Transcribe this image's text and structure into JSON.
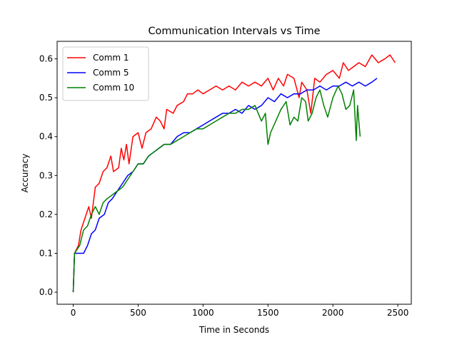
{
  "chart_data": {
    "type": "line",
    "title": "Communication Intervals vs Time",
    "x_label": "Time in Seconds",
    "y_label": "Accuracy",
    "xlim": [
      -124,
      2604
    ],
    "ylim": [
      -0.031,
      0.645
    ],
    "xticks": [
      0,
      500,
      1000,
      1500,
      2000,
      2500
    ],
    "yticks": [
      {
        "value": 0,
        "label": "0.0"
      },
      0.1,
      0.2,
      0.3,
      0.4,
      0.5,
      0.6
    ],
    "grid": false,
    "legend": "upper-left",
    "series": [
      {
        "name": "Comm 1",
        "color": "#ff0000",
        "x": [
          0,
          10,
          40,
          60,
          90,
          120,
          140,
          170,
          200,
          230,
          260,
          290,
          310,
          350,
          370,
          390,
          410,
          430,
          460,
          500,
          530,
          560,
          600,
          640,
          670,
          700,
          720,
          770,
          800,
          850,
          880,
          920,
          960,
          1000,
          1050,
          1100,
          1150,
          1200,
          1250,
          1300,
          1350,
          1400,
          1450,
          1500,
          1540,
          1580,
          1620,
          1650,
          1700,
          1740,
          1760,
          1800,
          1830,
          1860,
          1900,
          1950,
          2000,
          2050,
          2080,
          2120,
          2160,
          2200,
          2250,
          2300,
          2350,
          2400,
          2440,
          2480
        ],
        "values": [
          0.0,
          0.1,
          0.12,
          0.16,
          0.19,
          0.22,
          0.19,
          0.27,
          0.28,
          0.31,
          0.32,
          0.35,
          0.31,
          0.32,
          0.37,
          0.34,
          0.38,
          0.33,
          0.4,
          0.41,
          0.37,
          0.41,
          0.42,
          0.45,
          0.44,
          0.42,
          0.47,
          0.46,
          0.48,
          0.49,
          0.51,
          0.51,
          0.52,
          0.51,
          0.52,
          0.53,
          0.52,
          0.53,
          0.52,
          0.54,
          0.53,
          0.54,
          0.53,
          0.55,
          0.52,
          0.55,
          0.53,
          0.56,
          0.55,
          0.5,
          0.54,
          0.52,
          0.46,
          0.55,
          0.54,
          0.56,
          0.57,
          0.55,
          0.59,
          0.57,
          0.58,
          0.59,
          0.58,
          0.61,
          0.59,
          0.6,
          0.61,
          0.59
        ]
      },
      {
        "name": "Comm 5",
        "color": "#0000ff",
        "x": [
          0,
          10,
          40,
          80,
          110,
          140,
          170,
          200,
          240,
          270,
          300,
          340,
          380,
          420,
          460,
          500,
          540,
          580,
          620,
          660,
          700,
          750,
          800,
          850,
          900,
          950,
          1000,
          1050,
          1100,
          1150,
          1200,
          1250,
          1300,
          1350,
          1400,
          1450,
          1500,
          1550,
          1600,
          1650,
          1700,
          1750,
          1800,
          1850,
          1900,
          1950,
          2000,
          2050,
          2100,
          2150,
          2200,
          2250,
          2300,
          2340
        ],
        "values": [
          0.0,
          0.1,
          0.1,
          0.1,
          0.12,
          0.15,
          0.16,
          0.19,
          0.2,
          0.23,
          0.24,
          0.26,
          0.28,
          0.3,
          0.31,
          0.33,
          0.33,
          0.35,
          0.36,
          0.37,
          0.38,
          0.38,
          0.4,
          0.41,
          0.41,
          0.42,
          0.43,
          0.44,
          0.45,
          0.46,
          0.46,
          0.47,
          0.46,
          0.48,
          0.47,
          0.48,
          0.5,
          0.49,
          0.51,
          0.5,
          0.51,
          0.51,
          0.52,
          0.52,
          0.53,
          0.52,
          0.53,
          0.53,
          0.54,
          0.53,
          0.54,
          0.53,
          0.54,
          0.55
        ]
      },
      {
        "name": "Comm 10",
        "color": "#008000",
        "x": [
          0,
          10,
          50,
          80,
          110,
          140,
          170,
          200,
          230,
          260,
          300,
          340,
          380,
          420,
          460,
          500,
          540,
          580,
          620,
          660,
          700,
          750,
          800,
          850,
          900,
          950,
          1000,
          1050,
          1100,
          1150,
          1200,
          1250,
          1300,
          1350,
          1400,
          1450,
          1480,
          1500,
          1520,
          1560,
          1600,
          1640,
          1670,
          1700,
          1730,
          1760,
          1790,
          1810,
          1840,
          1870,
          1900,
          1930,
          1960,
          2000,
          2040,
          2070,
          2100,
          2130,
          2160,
          2180,
          2190,
          2210
        ],
        "values": [
          0.0,
          0.1,
          0.12,
          0.16,
          0.17,
          0.2,
          0.22,
          0.2,
          0.23,
          0.24,
          0.25,
          0.26,
          0.27,
          0.29,
          0.31,
          0.33,
          0.33,
          0.35,
          0.36,
          0.37,
          0.38,
          0.38,
          0.39,
          0.4,
          0.41,
          0.42,
          0.42,
          0.43,
          0.44,
          0.45,
          0.46,
          0.46,
          0.47,
          0.47,
          0.48,
          0.44,
          0.46,
          0.38,
          0.41,
          0.44,
          0.47,
          0.49,
          0.43,
          0.45,
          0.44,
          0.5,
          0.49,
          0.44,
          0.46,
          0.5,
          0.52,
          0.48,
          0.45,
          0.5,
          0.53,
          0.51,
          0.47,
          0.48,
          0.52,
          0.39,
          0.48,
          0.4
        ]
      }
    ]
  }
}
